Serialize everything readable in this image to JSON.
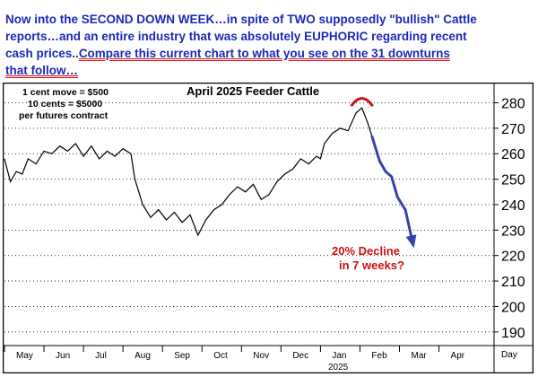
{
  "header": {
    "line1": "Now into the SECOND DOWN WEEK…in spite of TWO supposedly \"bullish\" Cattle",
    "line2": "reports…and an entire industry that was absolutely EUPHORIC regarding recent",
    "line3_plain": "cash prices..",
    "line3_link": "Compare this current chart to what you see on the 31 downturns",
    "line4_link": "that follow…"
  },
  "colors": {
    "header_text": "#1a2ab8",
    "price_line": "#000000",
    "projection_arrow": "#3a3fb0",
    "top_arc": "#d01010",
    "annotation": "#d01010",
    "grid": "#000000"
  },
  "chart_data": {
    "type": "line",
    "title": "April 2025 Feeder Cattle",
    "notes": [
      "1 cent move = $500",
      "10 cents = $5000",
      "per futures contract"
    ],
    "annotation": [
      "20% Decline",
      "in 7 weeks?"
    ],
    "xlabel": "",
    "ylabel": "",
    "x_tick_labels": [
      "May",
      "Jun",
      "Jul",
      "Aug",
      "Sep",
      "Oct",
      "Nov",
      "Dec",
      "Jan",
      "Feb",
      "Mar",
      "Apr"
    ],
    "x_sub_label": "2025",
    "x_axis_unit_label": "Day",
    "y_ticks": [
      190,
      200,
      210,
      220,
      230,
      240,
      250,
      260,
      270,
      280
    ],
    "ylim": [
      185,
      283
    ],
    "grid": "horizontal dotted",
    "series": [
      {
        "values": [
          [
            0,
            258
          ],
          [
            3,
            249
          ],
          [
            6,
            253
          ],
          [
            9,
            252
          ],
          [
            12,
            258
          ],
          [
            16,
            256
          ],
          [
            20,
            261
          ],
          [
            24,
            260
          ],
          [
            28,
            263
          ],
          [
            32,
            261
          ],
          [
            36,
            264
          ],
          [
            40,
            259
          ],
          [
            44,
            263
          ],
          [
            48,
            258
          ],
          [
            52,
            261
          ],
          [
            56,
            259
          ],
          [
            60,
            262
          ],
          [
            64,
            260
          ],
          [
            66,
            250
          ],
          [
            70,
            240
          ],
          [
            74,
            235
          ],
          [
            78,
            238
          ],
          [
            82,
            234
          ],
          [
            86,
            237
          ],
          [
            90,
            233
          ],
          [
            94,
            236
          ],
          [
            98,
            228
          ],
          [
            102,
            234
          ],
          [
            106,
            238
          ],
          [
            110,
            240
          ],
          [
            114,
            244
          ],
          [
            118,
            247
          ],
          [
            122,
            245
          ],
          [
            126,
            248
          ],
          [
            130,
            242
          ],
          [
            134,
            244
          ],
          [
            138,
            249
          ],
          [
            142,
            252
          ],
          [
            146,
            254
          ],
          [
            150,
            258
          ],
          [
            154,
            256
          ],
          [
            158,
            259
          ],
          [
            160,
            258
          ],
          [
            162,
            264
          ],
          [
            166,
            268
          ],
          [
            170,
            270
          ],
          [
            174,
            269
          ],
          [
            178,
            276
          ],
          [
            181,
            278
          ],
          [
            184,
            272
          ],
          [
            186,
            267
          ]
        ]
      }
    ],
    "projection": [
      [
        186,
        267
      ],
      [
        190,
        257
      ],
      [
        193,
        253
      ],
      [
        196,
        251
      ],
      [
        199,
        243
      ],
      [
        203,
        238
      ],
      [
        207,
        224
      ]
    ]
  }
}
